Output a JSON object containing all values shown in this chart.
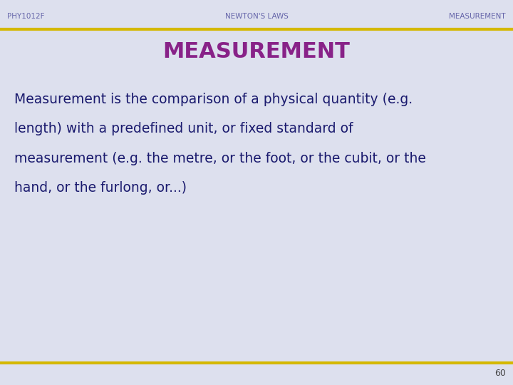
{
  "background_color": "#dde0ee",
  "header_left": "PHY1012F",
  "header_center": "NEWTON'S LAWS",
  "header_right": "MEASUREMENT",
  "header_text_color": "#6666aa",
  "header_line_color": "#d4b800",
  "title": "MEASUREMENT",
  "title_color": "#882288",
  "body_lines": [
    "Measurement is the comparison of a physical quantity (e.g.",
    "length) with a predefined unit, or fixed standard of",
    "measurement (e.g. the metre, or the foot, or the cubit, or the",
    "hand, or the furlong, or...)"
  ],
  "body_text_color": "#1a1a6e",
  "footer_number": "60",
  "footer_text_color": "#444444",
  "footer_line_color": "#d4b800"
}
